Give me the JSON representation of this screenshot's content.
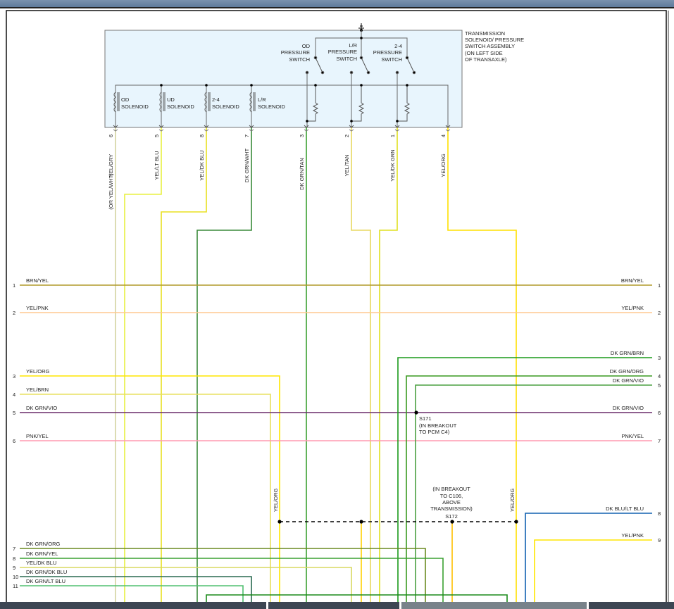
{
  "component": {
    "title_lines": [
      "TRANSMISSION",
      "SOLENOID/ PRESSURE",
      "SWITCH ASSEMBLY",
      "(ON LEFT SIDE",
      "OF TRANSAXLE)"
    ],
    "solenoids": [
      {
        "l1": "OD",
        "l2": "SOLENOID"
      },
      {
        "l1": "UD",
        "l2": "SOLENOID"
      },
      {
        "l1": "2-4",
        "l2": "SOLENOID"
      },
      {
        "l1": "L/R",
        "l2": "SOLENOID"
      }
    ],
    "switches": [
      {
        "l1": "OD",
        "l2": "PRESSURE",
        "l3": "SWITCH"
      },
      {
        "l1": "L/R",
        "l2": "PRESSURE",
        "l3": "SWITCH"
      },
      {
        "l1": "2-4",
        "l2": "PRESSURE",
        "l3": "SWITCH"
      }
    ],
    "pins": [
      {
        "pin": "6",
        "wire": "YEL/GRY",
        "alt": "(OR YEL/WHT)"
      },
      {
        "pin": "5",
        "wire": "YEL/LT BLU"
      },
      {
        "pin": "8",
        "wire": "YEL/DK BLU"
      },
      {
        "pin": "7",
        "wire": "DK GRN/WHT"
      },
      {
        "pin": "3",
        "wire": "DK GRN/TAN"
      },
      {
        "pin": "2",
        "wire": "YEL/TAN"
      },
      {
        "pin": "1",
        "wire": "YEL/DK GRN"
      },
      {
        "pin": "4",
        "wire": "YEL/ORG"
      }
    ]
  },
  "left_wires": [
    {
      "num": "1",
      "label": "BRN/YEL",
      "color": "#b09a2a"
    },
    {
      "num": "2",
      "label": "YEL/PNK",
      "color": "#ffc890"
    },
    {
      "num": "3",
      "label": "YEL/ORG",
      "color": "#ffe600"
    },
    {
      "num": "4",
      "label": "YEL/BRN",
      "color": "#f0e000"
    },
    {
      "num": "5",
      "label": "DK GRN/VIO",
      "color": "#6a2c6a"
    },
    {
      "num": "6",
      "label": "PNK/YEL",
      "color": "#ff9ab0"
    },
    {
      "num": "7",
      "label": "DK GRN/ORG",
      "color": "#6a8a20"
    },
    {
      "num": "8",
      "label": "DK GRN/YEL",
      "color": "#3aa030"
    },
    {
      "num": "9",
      "label": "YEL/DK BLU",
      "color": "#d8d860"
    },
    {
      "num": "10",
      "label": "DK GRN/DK BLU",
      "color": "#2a6a50"
    },
    {
      "num": "11",
      "label": "DK GRN/LT BLU",
      "color": "#50c070"
    }
  ],
  "right_wires": [
    {
      "num": "1",
      "label": "BRN/YEL"
    },
    {
      "num": "2",
      "label": "YEL/PNK"
    },
    {
      "num": "3",
      "label": "DK GRN/BRN",
      "color": "#1a9a1a"
    },
    {
      "num": "4",
      "label": "DK GRN/ORG",
      "color": "#3a9a20"
    },
    {
      "num": "5",
      "label": "DK GRN/VIO",
      "color": "#4aa040"
    },
    {
      "num": "6",
      "label": "DK GRN/VIO"
    },
    {
      "num": "7",
      "label": "PNK/YEL"
    },
    {
      "num": "8",
      "label": "DK BLU/LT BLU",
      "color": "#1060b0"
    },
    {
      "num": "9",
      "label": "YEL/PNK",
      "color": "#ffe600"
    }
  ],
  "splices": {
    "s171": {
      "name": "S171",
      "l1": "(IN BREAKOUT",
      "l2": "TO PCM C4)"
    },
    "s172": {
      "name": "S172",
      "l1": "(IN BREAKOUT",
      "l2": "TO C106,",
      "l3": "ABOVE",
      "l4": "TRANSMISSION)"
    },
    "s172_wire_label": "YEL/ORG"
  }
}
